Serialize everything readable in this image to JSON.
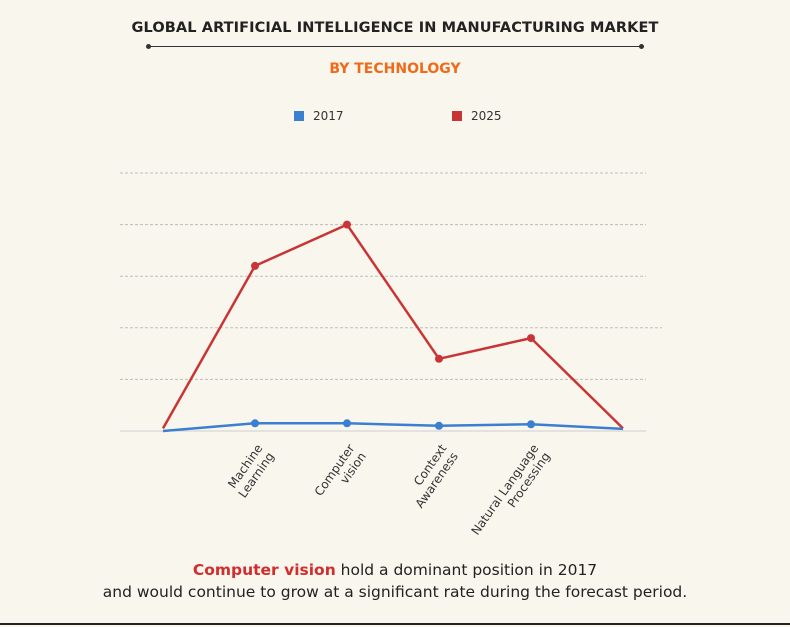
{
  "header": {
    "title": "GLOBAL ARTIFICIAL INTELLIGENCE IN MANUFACTURING MARKET",
    "subtitle": "BY TECHNOLOGY"
  },
  "colors": {
    "series_2017": "#3b7fd0",
    "series_2025": "#c93434",
    "subtitle": "#f06a18",
    "highlight": "#d22d2d"
  },
  "chart_data": {
    "type": "line",
    "title": "GLOBAL ARTIFICIAL INTELLIGENCE IN MANUFACTURING MARKET",
    "subtitle": "BY TECHNOLOGY",
    "categories": [
      "",
      "Machine Learning",
      "Computer vision",
      "Context Awareness",
      "Natural Language Processing",
      ""
    ],
    "series": [
      {
        "name": "2017",
        "color": "#3b7fd0",
        "values": [
          0,
          1.5,
          1.5,
          1.0,
          1.3,
          0.4
        ]
      },
      {
        "name": "2025",
        "color": "#c93434",
        "values": [
          0.5,
          32.0,
          40.0,
          14.0,
          18.0,
          0.5
        ]
      }
    ],
    "marker_indices": [
      1,
      2,
      3,
      4
    ],
    "ylim": [
      0,
      50
    ],
    "y_gridlines": [
      10,
      20,
      30,
      40,
      50
    ],
    "y_tick_labels_shown": false,
    "legend": "top-center",
    "grid": true
  },
  "caption": {
    "highlight": "Computer vision",
    "line1_rest": " hold a dominant position in 2017",
    "line2": "and would continue to grow at a significant rate during the forecast period."
  }
}
